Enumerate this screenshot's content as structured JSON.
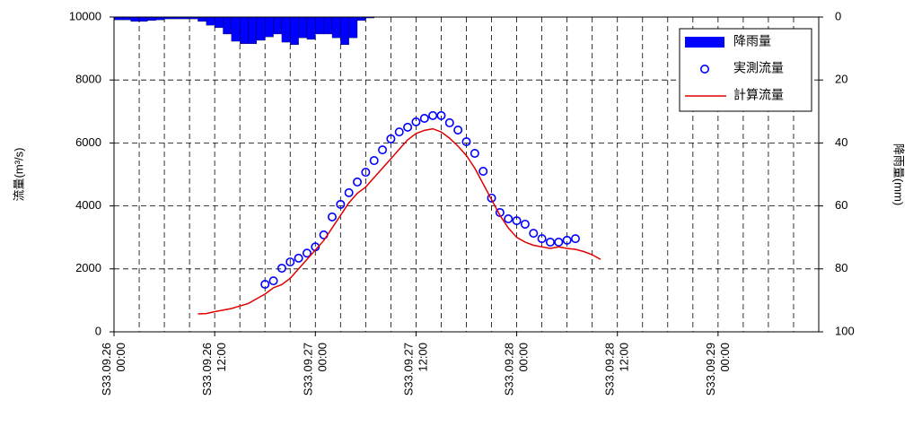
{
  "chart_data": {
    "type": "hydrograph",
    "ylabel": "流量(m³/s)",
    "y2label": "降雨量(mm)",
    "xlim": [
      0,
      84
    ],
    "ylim": [
      0,
      10000
    ],
    "y2lim": [
      100,
      0
    ],
    "xticks": [
      {
        "value": 0,
        "label": "S33.09.26\n00:00"
      },
      {
        "value": 12,
        "label": "S33.09.26\n12:00"
      },
      {
        "value": 24,
        "label": "S33.09.27\n00:00"
      },
      {
        "value": 36,
        "label": "S33.09.27\n12:00"
      },
      {
        "value": 48,
        "label": "S33.09.28\n00:00"
      },
      {
        "value": 60,
        "label": "S33.09.28\n12:00"
      },
      {
        "value": 72,
        "label": "S33.09.29\n00:00"
      }
    ],
    "x_minor_ticks": [
      3,
      6,
      9,
      15,
      18,
      21,
      27,
      30,
      33,
      39,
      42,
      45,
      51,
      54,
      57,
      63,
      66,
      69,
      75,
      78,
      81
    ],
    "yticks": [
      0,
      2000,
      4000,
      6000,
      8000,
      10000
    ],
    "y2ticks": [
      0,
      20,
      40,
      60,
      80,
      100
    ],
    "grid": true,
    "legend": "upper right",
    "series": [
      {
        "name": "降雨量",
        "kind": "bar",
        "axis": "y2",
        "color": "#0000ff",
        "x": [
          0,
          1,
          2,
          3,
          4,
          5,
          6,
          7,
          8,
          9,
          10,
          11,
          12,
          13,
          14,
          15,
          16,
          17,
          18,
          19,
          20,
          21,
          22,
          23,
          24,
          25,
          26,
          27,
          28,
          29,
          30
        ],
        "values": [
          0.9,
          0.9,
          1.4,
          1.4,
          1.1,
          0.9,
          0.6,
          0.6,
          0.6,
          0.6,
          1.4,
          2.6,
          3.4,
          5.4,
          7.7,
          8.5,
          8.5,
          7.4,
          6.3,
          5.4,
          8,
          8.8,
          6.6,
          7.1,
          5.4,
          5.4,
          6.6,
          8.8,
          6.6,
          1.1,
          0.3
        ]
      },
      {
        "name": "実測流量",
        "kind": "scatter",
        "color": "#0000ff",
        "x": [
          18,
          19,
          20,
          21,
          22,
          23,
          24,
          25,
          26,
          27,
          28,
          29,
          30,
          31,
          32,
          33,
          34,
          35,
          36,
          37,
          38,
          39,
          40,
          41,
          42,
          43,
          44,
          45,
          46,
          47,
          48,
          49,
          50,
          51,
          52,
          53,
          54,
          55
        ],
        "values": [
          1510,
          1620,
          2020,
          2220,
          2340,
          2500,
          2700,
          3080,
          3650,
          4050,
          4420,
          4760,
          5070,
          5440,
          5780,
          6130,
          6350,
          6500,
          6670,
          6780,
          6870,
          6870,
          6640,
          6410,
          6040,
          5670,
          5100,
          4250,
          3790,
          3590,
          3530,
          3420,
          3130,
          2960,
          2850,
          2850,
          2910,
          2960
        ]
      },
      {
        "name": "計算流量",
        "kind": "line",
        "color": "#e00000",
        "x": [
          10,
          11,
          12,
          13,
          14,
          15,
          16,
          17,
          18,
          19,
          20,
          21,
          22,
          23,
          24,
          25,
          26,
          27,
          28,
          29,
          30,
          31,
          32,
          33,
          34,
          35,
          36,
          37,
          38,
          39,
          40,
          41,
          42,
          43,
          44,
          45,
          46,
          47,
          48,
          49,
          50,
          51,
          52,
          53,
          54,
          55,
          56,
          57,
          58
        ],
        "values": [
          570,
          580,
          640,
          690,
          740,
          820,
          900,
          1050,
          1200,
          1400,
          1500,
          1700,
          2000,
          2300,
          2600,
          2900,
          3300,
          3700,
          4100,
          4400,
          4600,
          4900,
          5200,
          5500,
          5800,
          6100,
          6300,
          6400,
          6450,
          6350,
          6150,
          5900,
          5600,
          5200,
          4700,
          4200,
          3700,
          3300,
          3000,
          2850,
          2750,
          2700,
          2650,
          2700,
          2650,
          2620,
          2550,
          2450,
          2300
        ]
      }
    ]
  }
}
